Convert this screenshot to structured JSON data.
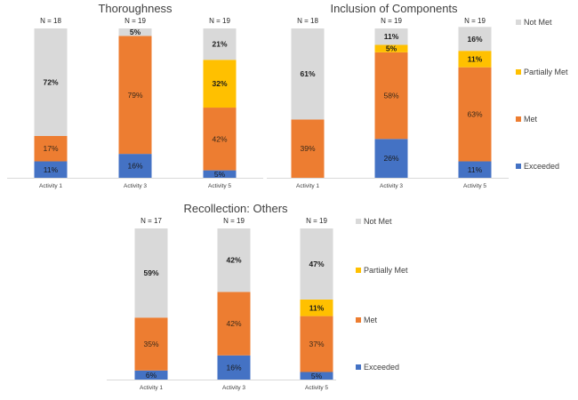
{
  "chart_data": [
    {
      "type": "bar",
      "stacked": true,
      "percent": true,
      "title": "Thoroughness",
      "categories": [
        "Activity 1",
        "Activity 3",
        "Activity 5"
      ],
      "n_labels": [
        "N = 18",
        "N = 19",
        "N = 19"
      ],
      "series": [
        {
          "name": "Exceeded",
          "color": "#4472C4",
          "values": [
            11,
            16,
            5
          ],
          "labels": [
            "11%",
            "16%",
            "5%"
          ]
        },
        {
          "name": "Met",
          "color": "#ED7D31",
          "values": [
            17,
            79,
            42
          ],
          "labels": [
            "17%",
            "79%",
            "42%"
          ]
        },
        {
          "name": "Partially Met",
          "color": "#FFC000",
          "values": [
            0,
            0,
            32
          ],
          "labels": [
            "",
            "",
            "32%"
          ]
        },
        {
          "name": "Not Met",
          "color": "#D9D9D9",
          "values": [
            72,
            5,
            21
          ],
          "labels": [
            "72%",
            "5%",
            "21%"
          ]
        }
      ],
      "ylim": [
        0,
        100
      ],
      "legend": "none"
    },
    {
      "type": "bar",
      "stacked": true,
      "percent": true,
      "title": "Inclusion of Components",
      "categories": [
        "Activity 1",
        "Activity 3",
        "Activity 5"
      ],
      "n_labels": [
        "N = 18",
        "N = 19",
        "N = 19"
      ],
      "series": [
        {
          "name": "Exceeded",
          "color": "#4472C4",
          "values": [
            0,
            26,
            11
          ],
          "labels": [
            "",
            "26%",
            "11%"
          ]
        },
        {
          "name": "Met",
          "color": "#ED7D31",
          "values": [
            39,
            58,
            63
          ],
          "labels": [
            "39%",
            "58%",
            "63%"
          ]
        },
        {
          "name": "Partially Met",
          "color": "#FFC000",
          "values": [
            0,
            5,
            11
          ],
          "labels": [
            "",
            "5%",
            "11%"
          ]
        },
        {
          "name": "Not Met",
          "color": "#D9D9D9",
          "values": [
            61,
            11,
            16
          ],
          "labels": [
            "61%",
            "11%",
            "16%"
          ]
        }
      ],
      "ylim": [
        0,
        100
      ],
      "legend": "right"
    },
    {
      "type": "bar",
      "stacked": true,
      "percent": true,
      "title": "Recollection: Others",
      "categories": [
        "Activity 1",
        "Activity 3",
        "Activity 5"
      ],
      "n_labels": [
        "N = 17",
        "N = 19",
        "N = 19"
      ],
      "series": [
        {
          "name": "Exceeded",
          "color": "#4472C4",
          "values": [
            6,
            16,
            5
          ],
          "labels": [
            "6%",
            "16%",
            "5%"
          ]
        },
        {
          "name": "Met",
          "color": "#ED7D31",
          "values": [
            35,
            42,
            37
          ],
          "labels": [
            "35%",
            "42%",
            "37%"
          ]
        },
        {
          "name": "Partially Met",
          "color": "#FFC000",
          "values": [
            0,
            0,
            11
          ],
          "labels": [
            "",
            "",
            "11%"
          ]
        },
        {
          "name": "Not Met",
          "color": "#D9D9D9",
          "values": [
            59,
            42,
            47
          ],
          "labels": [
            "59%",
            "42%",
            "47%"
          ]
        }
      ],
      "ylim": [
        0,
        100
      ],
      "legend": "right"
    }
  ],
  "legend_order": [
    "Not Met",
    "Partially Met",
    "Met",
    "Exceeded"
  ],
  "colors": {
    "Exceeded": "#4472C4",
    "Met": "#ED7D31",
    "Partially Met": "#FFC000",
    "Not Met": "#D9D9D9"
  }
}
